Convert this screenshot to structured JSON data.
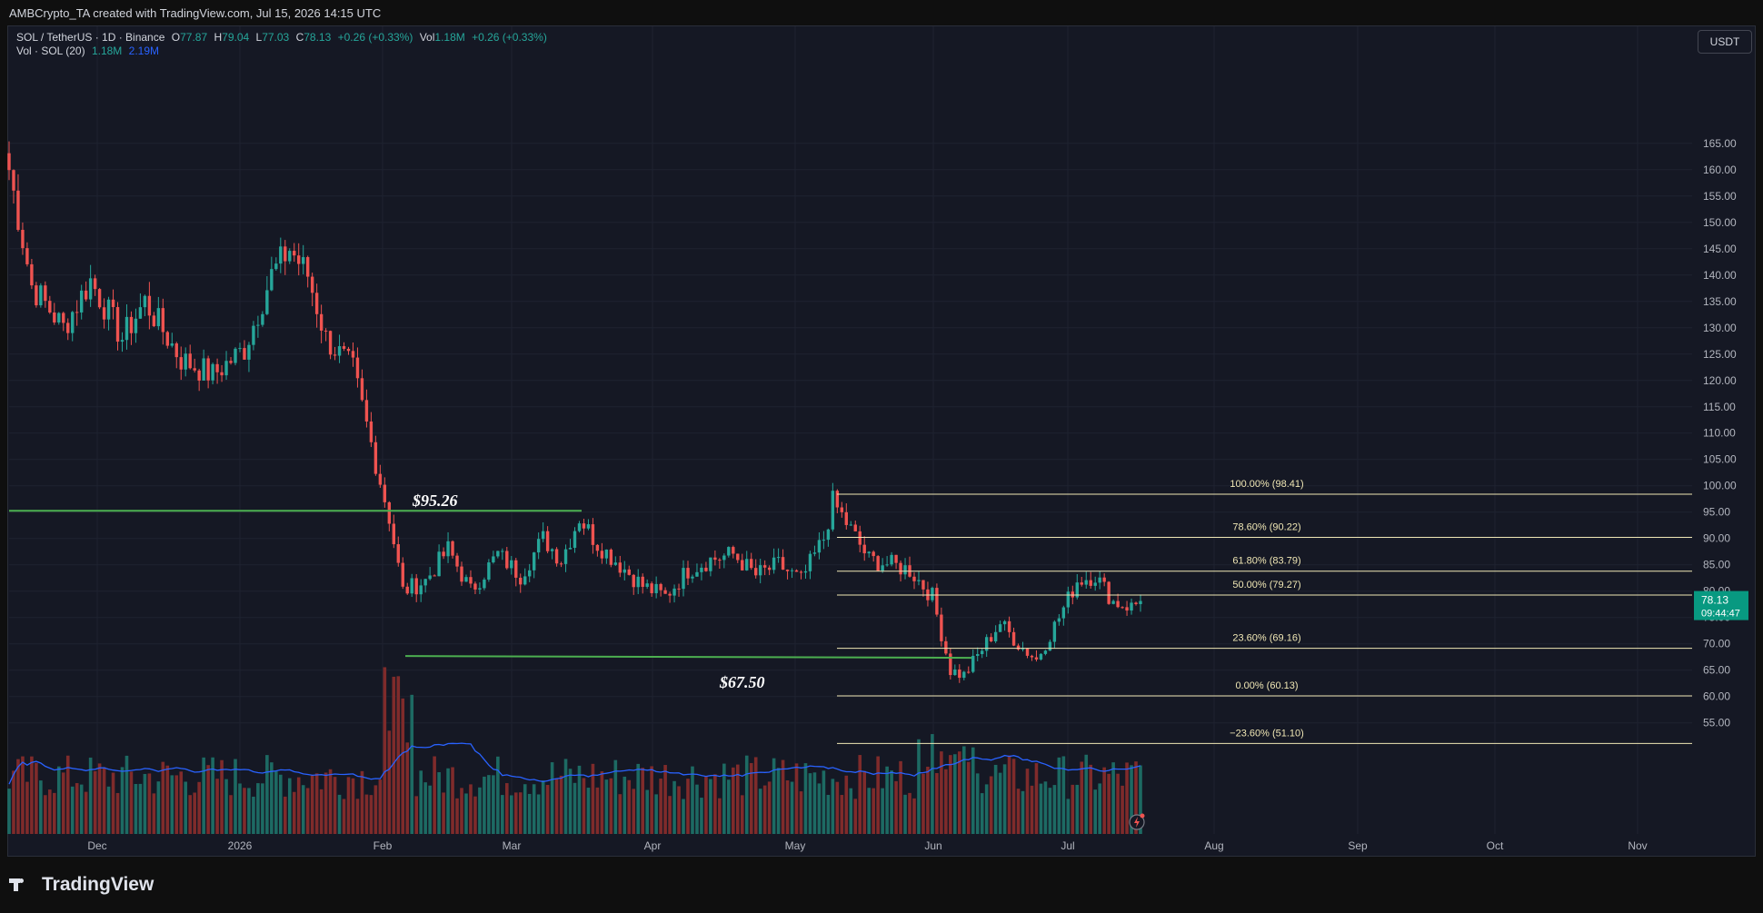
{
  "header": {
    "caption": "AMBCrypto_TA created with TradingView.com, Jul 15, 2026 14:15 UTC"
  },
  "legend": {
    "symbol": "SOL / TetherUS · 1D · Binance",
    "o_label": "O",
    "o": "77.87",
    "h_label": "H",
    "h": "79.04",
    "l_label": "L",
    "l": "77.03",
    "c_label": "C",
    "c": "78.13",
    "change": "+0.26 (+0.33%)",
    "vol_label": "Vol",
    "vol": "1.18M",
    "vol_change": "+0.26 (+0.33%)",
    "vol_study": "Vol · SOL (20)",
    "vol_value": "1.18M",
    "vol_ma": "2.19M"
  },
  "currency_button": "USDT",
  "footer": {
    "brand": "TradingView"
  },
  "colors": {
    "up": "#26a69a",
    "down": "#ef5350",
    "fib": "#f0e7b5",
    "support": "#4caf50",
    "vol_ma": "#2962ff",
    "last_price": "#089981"
  },
  "chart_data": {
    "type": "candlestick",
    "pair": "SOL / TetherUS",
    "timeframe": "1D",
    "exchange": "Binance",
    "y_ticks": [
      "165.00",
      "160.00",
      "155.00",
      "150.00",
      "145.00",
      "140.00",
      "135.00",
      "130.00",
      "125.00",
      "120.00",
      "115.00",
      "110.00",
      "105.00",
      "100.00",
      "95.00",
      "90.00",
      "85.00",
      "80.00",
      "75.00",
      "70.00",
      "65.00",
      "60.00",
      "55.00"
    ],
    "y_range": [
      50.5,
      168
    ],
    "x_ticks": [
      "Dec",
      "2026",
      "Feb",
      "Mar",
      "Apr",
      "May",
      "Jun",
      "Jul",
      "Aug",
      "Sep",
      "Oct",
      "Nov"
    ],
    "last_price": "78.13",
    "countdown": "09:44:47",
    "fib_levels": [
      {
        "label": "100.00% (98.41)",
        "price": 98.41
      },
      {
        "label": "78.60% (90.22)",
        "price": 90.22
      },
      {
        "label": "61.80% (83.79)",
        "price": 83.79
      },
      {
        "label": "50.00% (79.27)",
        "price": 79.27
      },
      {
        "label": "23.60% (69.16)",
        "price": 69.16
      },
      {
        "label": "0.00% (60.13)",
        "price": 60.13
      },
      {
        "label": "−23.60% (51.10)",
        "price": 51.1
      }
    ],
    "annotations": [
      {
        "text": "$95.26",
        "price": 95.26
      },
      {
        "text": "$67.50",
        "price": 67.5
      }
    ],
    "anchors": [
      {
        "day": 0,
        "price": 160
      },
      {
        "day": 5,
        "price": 138
      },
      {
        "day": 12,
        "price": 130
      },
      {
        "day": 18,
        "price": 139
      },
      {
        "day": 25,
        "price": 128
      },
      {
        "day": 30,
        "price": 135
      },
      {
        "day": 38,
        "price": 124
      },
      {
        "day": 45,
        "price": 121
      },
      {
        "day": 52,
        "price": 126
      },
      {
        "day": 58,
        "price": 140
      },
      {
        "day": 62,
        "price": 145
      },
      {
        "day": 66,
        "price": 140
      },
      {
        "day": 70,
        "price": 128
      },
      {
        "day": 76,
        "price": 122
      },
      {
        "day": 80,
        "price": 108
      },
      {
        "day": 84,
        "price": 94
      },
      {
        "day": 87,
        "price": 80
      },
      {
        "day": 92,
        "price": 82
      },
      {
        "day": 97,
        "price": 88
      },
      {
        "day": 102,
        "price": 80
      },
      {
        "day": 108,
        "price": 87
      },
      {
        "day": 113,
        "price": 83
      },
      {
        "day": 118,
        "price": 90
      },
      {
        "day": 122,
        "price": 86
      },
      {
        "day": 126,
        "price": 94
      },
      {
        "day": 130,
        "price": 89
      },
      {
        "day": 135,
        "price": 85
      },
      {
        "day": 140,
        "price": 81
      },
      {
        "day": 145,
        "price": 79
      },
      {
        "day": 150,
        "price": 84
      },
      {
        "day": 155,
        "price": 86
      },
      {
        "day": 160,
        "price": 87
      },
      {
        "day": 165,
        "price": 83
      },
      {
        "day": 170,
        "price": 85
      },
      {
        "day": 175,
        "price": 82
      },
      {
        "day": 180,
        "price": 90
      },
      {
        "day": 182,
        "price": 97
      },
      {
        "day": 185,
        "price": 93
      },
      {
        "day": 190,
        "price": 86
      },
      {
        "day": 195,
        "price": 85
      },
      {
        "day": 199,
        "price": 84
      },
      {
        "day": 204,
        "price": 79
      },
      {
        "day": 208,
        "price": 65
      },
      {
        "day": 211,
        "price": 64
      },
      {
        "day": 215,
        "price": 69
      },
      {
        "day": 219,
        "price": 74
      },
      {
        "day": 223,
        "price": 70
      },
      {
        "day": 227,
        "price": 67
      },
      {
        "day": 232,
        "price": 75
      },
      {
        "day": 236,
        "price": 82
      },
      {
        "day": 240,
        "price": 83
      },
      {
        "day": 244,
        "price": 78
      },
      {
        "day": 248,
        "price": 77
      },
      {
        "day": 250,
        "price": 78.13
      }
    ]
  }
}
